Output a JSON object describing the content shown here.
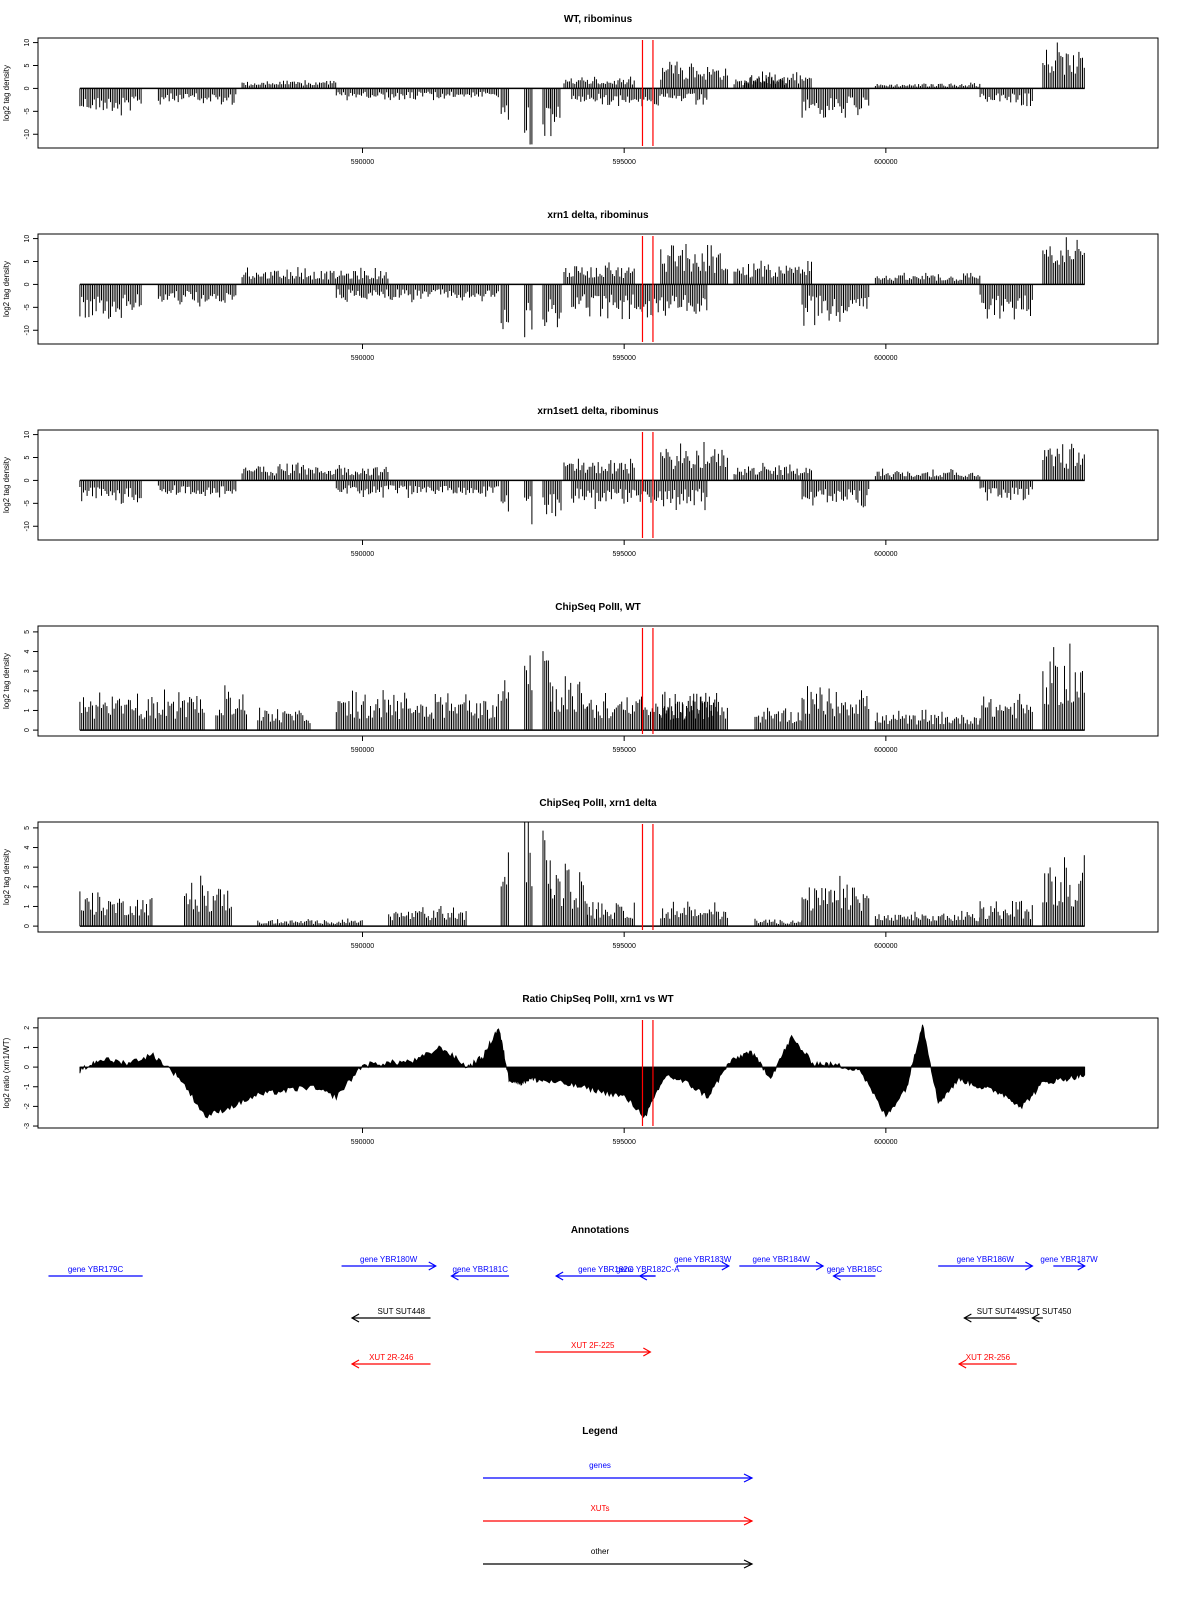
{
  "chart_data": [
    {
      "type": "bar",
      "title": "WT, ribominus",
      "ylabel": "log2 tag density",
      "ylim": [
        -13,
        11
      ],
      "yticks": [
        10,
        5,
        0,
        -5,
        -10
      ],
      "xlim": [
        583800,
        605200
      ],
      "xticks": [
        590000,
        595000,
        600000
      ],
      "xtick_labels": [
        "590000",
        "595000",
        "600000"
      ],
      "reference_lines_x": [
        595350,
        595550
      ],
      "reference_line_color": "#ff0000",
      "series": [
        {
          "values": [
            {
              "x": [
                584600,
                585800
              ],
              "y": -5
            },
            {
              "x": [
                586100,
                587600
              ],
              "y": -3
            },
            {
              "x": [
                587700,
                589500
              ],
              "y": 1.5
            },
            {
              "x": [
                589500,
                592600
              ],
              "y": -2
            },
            {
              "x": [
                592650,
                592800
              ],
              "y": -10
            },
            {
              "x": [
                593100,
                593250
              ],
              "y": -11
            },
            {
              "x": [
                593450,
                593600
              ],
              "y": -12
            },
            {
              "x": [
                593600,
                593800
              ],
              "y": -10
            },
            {
              "x": [
                593850,
                595200
              ],
              "y": 2
            },
            {
              "x": [
                594000,
                596600
              ],
              "y": -3
            },
            {
              "x": [
                595700,
                597000
              ],
              "y": 5
            },
            {
              "x": [
                597100,
                598100
              ],
              "y": 2
            },
            {
              "x": [
                597300,
                598600
              ],
              "y": 3
            },
            {
              "x": [
                598400,
                599700
              ],
              "y": -5
            },
            {
              "x": [
                599800,
                601800
              ],
              "y": 1
            },
            {
              "x": [
                601800,
                602800
              ],
              "y": -3
            },
            {
              "x": [
                603000,
                603800
              ],
              "y": 8
            }
          ]
        }
      ]
    },
    {
      "type": "bar",
      "title": "xrn1 delta, ribominus",
      "ylabel": "log2 tag density",
      "ylim": [
        -13,
        11
      ],
      "yticks": [
        10,
        5,
        0,
        -5,
        -10
      ],
      "xlim": [
        583800,
        605200
      ],
      "xticks": [
        590000,
        595000,
        600000
      ],
      "xtick_labels": [
        "590000",
        "595000",
        "600000"
      ],
      "reference_lines_x": [
        595350,
        595550
      ],
      "reference_line_color": "#ff0000",
      "series": [
        {
          "values": [
            {
              "x": [
                584600,
                585800
              ],
              "y": -6
            },
            {
              "x": [
                586100,
                587600
              ],
              "y": -4
            },
            {
              "x": [
                587700,
                590500
              ],
              "y": 3
            },
            {
              "x": [
                589500,
                592600
              ],
              "y": -3
            },
            {
              "x": [
                592650,
                592800
              ],
              "y": -9
            },
            {
              "x": [
                593100,
                593250
              ],
              "y": -10
            },
            {
              "x": [
                593450,
                593800
              ],
              "y": -9
            },
            {
              "x": [
                593850,
                595200
              ],
              "y": 4
            },
            {
              "x": [
                594000,
                596600
              ],
              "y": -6
            },
            {
              "x": [
                595700,
                597000
              ],
              "y": 7
            },
            {
              "x": [
                597100,
                598600
              ],
              "y": 4
            },
            {
              "x": [
                598400,
                599700
              ],
              "y": -7
            },
            {
              "x": [
                599800,
                601800
              ],
              "y": 2
            },
            {
              "x": [
                601800,
                602800
              ],
              "y": -6
            },
            {
              "x": [
                603000,
                603800
              ],
              "y": 8
            }
          ]
        }
      ]
    },
    {
      "type": "bar",
      "title": "xrn1set1 delta, ribominus",
      "ylabel": "log2 tag density",
      "ylim": [
        -13,
        11
      ],
      "yticks": [
        10,
        5,
        0,
        -5,
        -10
      ],
      "xlim": [
        583800,
        605200
      ],
      "xticks": [
        590000,
        595000,
        600000
      ],
      "xtick_labels": [
        "590000",
        "595000",
        "600000"
      ],
      "reference_lines_x": [
        595350,
        595550
      ],
      "reference_line_color": "#ff0000",
      "series": [
        {
          "values": [
            {
              "x": [
                584600,
                585800
              ],
              "y": -4
            },
            {
              "x": [
                586100,
                587600
              ],
              "y": -3
            },
            {
              "x": [
                587700,
                590500
              ],
              "y": 3
            },
            {
              "x": [
                589500,
                592600
              ],
              "y": -3
            },
            {
              "x": [
                592650,
                592800
              ],
              "y": -7
            },
            {
              "x": [
                593100,
                593250
              ],
              "y": -9
            },
            {
              "x": [
                593450,
                593800
              ],
              "y": -8
            },
            {
              "x": [
                593850,
                595200
              ],
              "y": 4
            },
            {
              "x": [
                594000,
                596600
              ],
              "y": -5
            },
            {
              "x": [
                595700,
                597000
              ],
              "y": 7
            },
            {
              "x": [
                597100,
                598600
              ],
              "y": 3
            },
            {
              "x": [
                598400,
                599700
              ],
              "y": -5
            },
            {
              "x": [
                599800,
                601800
              ],
              "y": 2
            },
            {
              "x": [
                601800,
                602800
              ],
              "y": -4
            },
            {
              "x": [
                603000,
                603800
              ],
              "y": 7
            }
          ]
        }
      ]
    },
    {
      "type": "bar",
      "title": "ChipSeq PolII, WT",
      "ylabel": "log2 tag density",
      "ylim": [
        -0.3,
        5.3
      ],
      "yticks": [
        0,
        1,
        2,
        3,
        4,
        5
      ],
      "xlim": [
        583800,
        605200
      ],
      "xticks": [
        590000,
        595000,
        600000
      ],
      "xtick_labels": [
        "590000",
        "595000",
        "600000"
      ],
      "reference_lines_x": [
        595350,
        595550
      ],
      "reference_line_color": "#ff0000",
      "series": [
        {
          "values": [
            {
              "x": [
                584600,
                587000
              ],
              "y": 1.6
            },
            {
              "x": [
                587200,
                587800
              ],
              "y": 2
            },
            {
              "x": [
                588000,
                589000
              ],
              "y": 1
            },
            {
              "x": [
                589500,
                592600
              ],
              "y": 1.6
            },
            {
              "x": [
                592650,
                592800
              ],
              "y": 4
            },
            {
              "x": [
                593100,
                593250
              ],
              "y": 5
            },
            {
              "x": [
                593450,
                593600
              ],
              "y": 5
            },
            {
              "x": [
                593600,
                594300
              ],
              "y": 2.5
            },
            {
              "x": [
                594300,
                596800
              ],
              "y": 1.5
            },
            {
              "x": [
                595700,
                597000
              ],
              "y": 1.5
            },
            {
              "x": [
                597500,
                598400
              ],
              "y": 1
            },
            {
              "x": [
                598400,
                599700
              ],
              "y": 2
            },
            {
              "x": [
                599800,
                601800
              ],
              "y": 0.8
            },
            {
              "x": [
                601800,
                602800
              ],
              "y": 1.6
            },
            {
              "x": [
                603000,
                603800
              ],
              "y": 3.5
            }
          ]
        }
      ]
    },
    {
      "type": "bar",
      "title": "ChipSeq PolII, xrn1 delta",
      "ylabel": "log2 tag density",
      "ylim": [
        -0.3,
        5.3
      ],
      "yticks": [
        0,
        1,
        2,
        3,
        4,
        5
      ],
      "xlim": [
        583800,
        605200
      ],
      "xticks": [
        590000,
        595000,
        600000
      ],
      "xtick_labels": [
        "590000",
        "595000",
        "600000"
      ],
      "reference_lines_x": [
        595350,
        595550
      ],
      "reference_line_color": "#ff0000",
      "series": [
        {
          "values": [
            {
              "x": [
                584600,
                586000
              ],
              "y": 1.5
            },
            {
              "x": [
                586600,
                587500
              ],
              "y": 2
            },
            {
              "x": [
                588000,
                590000
              ],
              "y": 0.3
            },
            {
              "x": [
                590500,
                592000
              ],
              "y": 0.8
            },
            {
              "x": [
                592650,
                592800
              ],
              "y": 3.8
            },
            {
              "x": [
                593100,
                593250
              ],
              "y": 5
            },
            {
              "x": [
                593450,
                593600
              ],
              "y": 5
            },
            {
              "x": [
                593600,
                594300
              ],
              "y": 2.5
            },
            {
              "x": [
                594300,
                595200
              ],
              "y": 1
            },
            {
              "x": [
                595700,
                597000
              ],
              "y": 1
            },
            {
              "x": [
                597500,
                598400
              ],
              "y": 0.3
            },
            {
              "x": [
                598400,
                599700
              ],
              "y": 2
            },
            {
              "x": [
                599800,
                601800
              ],
              "y": 0.6
            },
            {
              "x": [
                601800,
                602800
              ],
              "y": 1
            },
            {
              "x": [
                603000,
                603800
              ],
              "y": 2.8
            }
          ]
        }
      ]
    },
    {
      "type": "area",
      "title": "Ratio ChipSeq PolII, xrn1 vs WT",
      "ylabel": "log2 ratio (xrn1/WT)",
      "ylim": [
        -3.1,
        2.5
      ],
      "yticks": [
        2,
        1,
        0,
        -1,
        -2,
        -3
      ],
      "xlim": [
        583800,
        605200
      ],
      "xticks": [
        590000,
        595000,
        600000
      ],
      "xtick_labels": [
        "590000",
        "595000",
        "600000"
      ],
      "reference_lines_x": [
        595350,
        595550
      ],
      "reference_line_color": "#ff0000",
      "series": [
        {
          "x": [
            584600,
            585000,
            585500,
            586000,
            586500,
            587000,
            587500,
            588000,
            588500,
            589000,
            589500,
            590000,
            590500,
            591000,
            591500,
            592000,
            592300,
            592600,
            592800,
            593000,
            593200,
            593500,
            594000,
            594500,
            595000,
            595400,
            595800,
            596200,
            596600,
            597000,
            597400,
            597800,
            598200,
            598600,
            599000,
            599500,
            600000,
            600400,
            600700,
            601000,
            601400,
            601800,
            602200,
            602600,
            603000,
            603400,
            603800
          ],
          "y": [
            -0.2,
            0.4,
            0.2,
            0.6,
            -0.5,
            -2.5,
            -2.0,
            -1.4,
            -1.2,
            -1.0,
            -1.5,
            0.1,
            0.2,
            0.3,
            1.0,
            0.0,
            0.5,
            2.0,
            -0.6,
            -0.8,
            -0.6,
            -0.7,
            -0.9,
            -1.2,
            -1.5,
            -2.5,
            -0.4,
            -0.8,
            -1.5,
            0.2,
            0.8,
            -0.5,
            1.5,
            0.2,
            0.1,
            -0.1,
            -2.5,
            -1.0,
            2.2,
            -1.8,
            -0.6,
            -1.0,
            -1.3,
            -2.0,
            -0.8,
            -0.6,
            -0.4
          ]
        }
      ]
    }
  ],
  "annotations": {
    "title": "Annotations",
    "genes": [
      {
        "label": "gene YBR179C",
        "x": [
          584000,
          585800
        ],
        "direction": "left",
        "arrow": false
      },
      {
        "label": "gene YBR180W",
        "x": [
          589600,
          591400
        ],
        "direction": "right",
        "arrow": true
      },
      {
        "label": "gene YBR181C",
        "x": [
          591700,
          592800
        ],
        "direction": "left",
        "arrow": true
      },
      {
        "label": "gene YBR182C",
        "x": [
          593700,
          595600
        ],
        "direction": "left",
        "arrow": true
      },
      {
        "label": "gene YBR182C-A",
        "x": [
          595300,
          595600
        ],
        "direction": "left",
        "arrow": true
      },
      {
        "label": "gene YBR183W",
        "x": [
          596000,
          597000
        ],
        "direction": "right",
        "arrow": true
      },
      {
        "label": "gene YBR184W",
        "x": [
          597200,
          598800
        ],
        "direction": "right",
        "arrow": true
      },
      {
        "label": "gene YBR185C",
        "x": [
          599000,
          599800
        ],
        "direction": "left",
        "arrow": true
      },
      {
        "label": "gene YBR186W",
        "x": [
          601000,
          602800
        ],
        "direction": "right",
        "arrow": true
      },
      {
        "label": "gene YBR187W",
        "x": [
          603200,
          603800
        ],
        "direction": "right",
        "arrow": true
      }
    ],
    "other": [
      {
        "label": "SUT SUT448",
        "x": [
          589800,
          591300
        ],
        "direction": "left"
      },
      {
        "label": "SUT SUT449",
        "x": [
          601500,
          602500
        ],
        "direction": "left"
      },
      {
        "label": "SUT SUT450",
        "x": [
          602800,
          603000
        ],
        "direction": "left"
      }
    ],
    "xuts": [
      {
        "label": "XUT 2R-246",
        "x": [
          589800,
          591300
        ],
        "direction": "left"
      },
      {
        "label": "XUT 2F-225",
        "x": [
          593300,
          595500
        ],
        "direction": "right"
      },
      {
        "label": "XUT 2R-256",
        "x": [
          601400,
          602500
        ],
        "direction": "left"
      }
    ]
  },
  "legend": {
    "title": "Legend",
    "items": [
      {
        "label": "genes",
        "color": "#0000ff"
      },
      {
        "label": "XUTs",
        "color": "#ff0000"
      },
      {
        "label": "other",
        "color": "#000000"
      }
    ]
  },
  "colors": {
    "gene": "#0000ff",
    "xut": "#ff0000",
    "other": "#000000",
    "reference_line": "#ff0000",
    "data": "#000000"
  }
}
